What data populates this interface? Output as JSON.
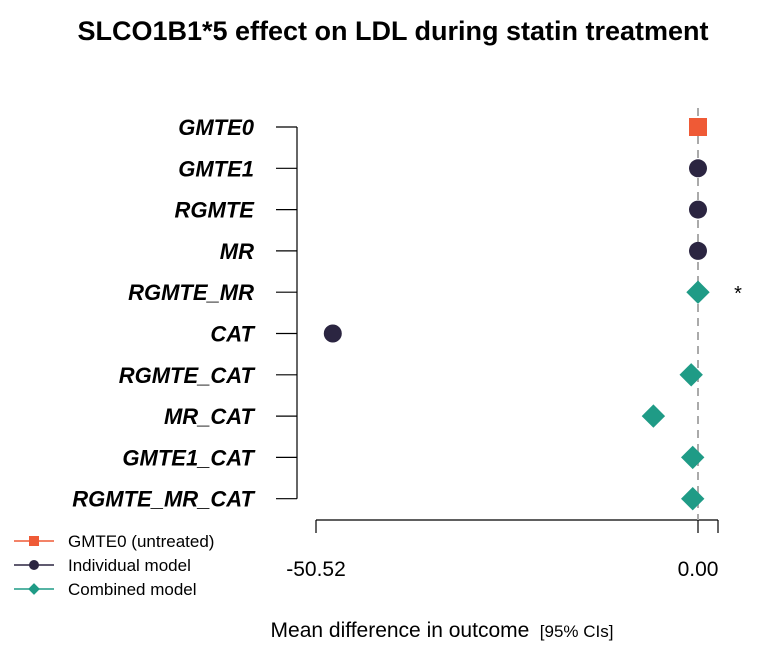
{
  "colors": {
    "untreated": "#ef5a36",
    "individual": "#2b2541",
    "combined": "#1f9b86",
    "refline": "#aaaaaa",
    "axis": "#000000"
  },
  "chart_data": {
    "type": "scatter",
    "title": "SLCO1B1*5 effect on LDL during statin treatment",
    "xlabel": "Mean difference in outcome",
    "xlabel_suffix": "[95% CIs]",
    "categories": [
      "GMTE0",
      "GMTE1",
      "RGMTE",
      "MR",
      "RGMTE_MR",
      "CAT",
      "RGMTE_CAT",
      "MR_CAT",
      "GMTE1_CAT",
      "RGMTE_MR_CAT"
    ],
    "points": [
      {
        "category": "GMTE0",
        "value": 0.0,
        "model": "GMTE0 (untreated)"
      },
      {
        "category": "GMTE1",
        "value": 0.0,
        "model": "Individual model"
      },
      {
        "category": "RGMTE",
        "value": 0.0,
        "model": "Individual model"
      },
      {
        "category": "MR",
        "value": 0.0,
        "model": "Individual model"
      },
      {
        "category": "RGMTE_MR",
        "value": 0.0,
        "model": "Combined model",
        "annotation": "*"
      },
      {
        "category": "CAT",
        "value": -48.3,
        "model": "Individual model"
      },
      {
        "category": "RGMTE_CAT",
        "value": -0.9,
        "model": "Combined model"
      },
      {
        "category": "MR_CAT",
        "value": -5.9,
        "model": "Combined model"
      },
      {
        "category": "GMTE1_CAT",
        "value": -0.7,
        "model": "Combined model"
      },
      {
        "category": "RGMTE_MR_CAT",
        "value": -0.7,
        "model": "Combined model"
      }
    ],
    "xticks": [
      {
        "value": -50.52,
        "label": "-50.52"
      },
      {
        "value": 0.0,
        "label": "0.00"
      }
    ],
    "xlim": [
      -50.52,
      2.7
    ],
    "reference_line": 0.0,
    "legend": {
      "position": "bottom-left",
      "entries": [
        {
          "label": "GMTE0 (untreated)",
          "marker": "square",
          "color_key": "untreated"
        },
        {
          "label": "Individual model",
          "marker": "circle",
          "color_key": "individual"
        },
        {
          "label": "Combined model",
          "marker": "diamond",
          "color_key": "combined"
        }
      ]
    }
  }
}
